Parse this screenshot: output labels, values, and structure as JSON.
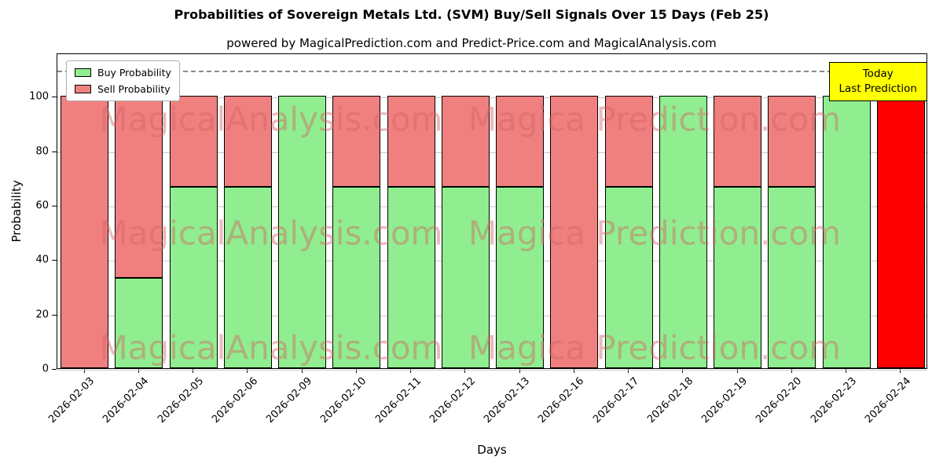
{
  "title": "Probabilities of Sovereign Metals Ltd. (SVM) Buy/Sell Signals Over 15 Days (Feb 25)",
  "subtitle": "powered by MagicalPrediction.com and Predict-Price.com and MagicalAnalysis.com",
  "xlabel": "Days",
  "ylabel": "Probability",
  "legend": {
    "buy": "Buy Probability",
    "sell": "Sell Probability"
  },
  "annotation": {
    "line1": "Today",
    "line2": "Last Prediction"
  },
  "watermarks": {
    "left": "MagicalAnalysis.com",
    "right": "Magica Prediction.com"
  },
  "colors": {
    "buy": "#90EE90",
    "sell": "#F08080",
    "today": "#FF0000",
    "annotation_bg": "#FFFF00",
    "grid": "#c9c9c9"
  },
  "chart_data": {
    "type": "bar",
    "stacked": true,
    "title": "Probabilities of Sovereign Metals Ltd. (SVM) Buy/Sell Signals Over 15 Days (Feb 25)",
    "xlabel": "Days",
    "ylabel": "Probability",
    "categories": [
      "2026-02-03",
      "2026-02-04",
      "2026-02-05",
      "2026-02-06",
      "2026-02-09",
      "2026-02-10",
      "2026-02-11",
      "2026-02-12",
      "2026-02-13",
      "2026-02-16",
      "2026-02-17",
      "2026-02-18",
      "2026-02-19",
      "2026-02-20",
      "2026-02-23",
      "2026-02-24"
    ],
    "series": [
      {
        "name": "Buy Probability",
        "color": "#90EE90",
        "values": [
          0,
          33.33,
          66.67,
          66.67,
          100,
          66.67,
          66.67,
          66.67,
          66.67,
          0,
          66.67,
          100,
          66.67,
          66.67,
          100,
          0
        ]
      },
      {
        "name": "Sell Probability",
        "color": "#F08080",
        "values": [
          100,
          66.67,
          33.33,
          33.33,
          0,
          33.33,
          33.33,
          33.33,
          33.33,
          100,
          33.33,
          0,
          33.33,
          33.33,
          0,
          100
        ]
      }
    ],
    "today_index": 15,
    "today_color": "#FF0000",
    "yticks": [
      0,
      20,
      40,
      60,
      80,
      100
    ],
    "ylim": [
      0,
      116
    ],
    "dashed_line_y": 110,
    "grid": true,
    "legend_position": "upper left"
  }
}
